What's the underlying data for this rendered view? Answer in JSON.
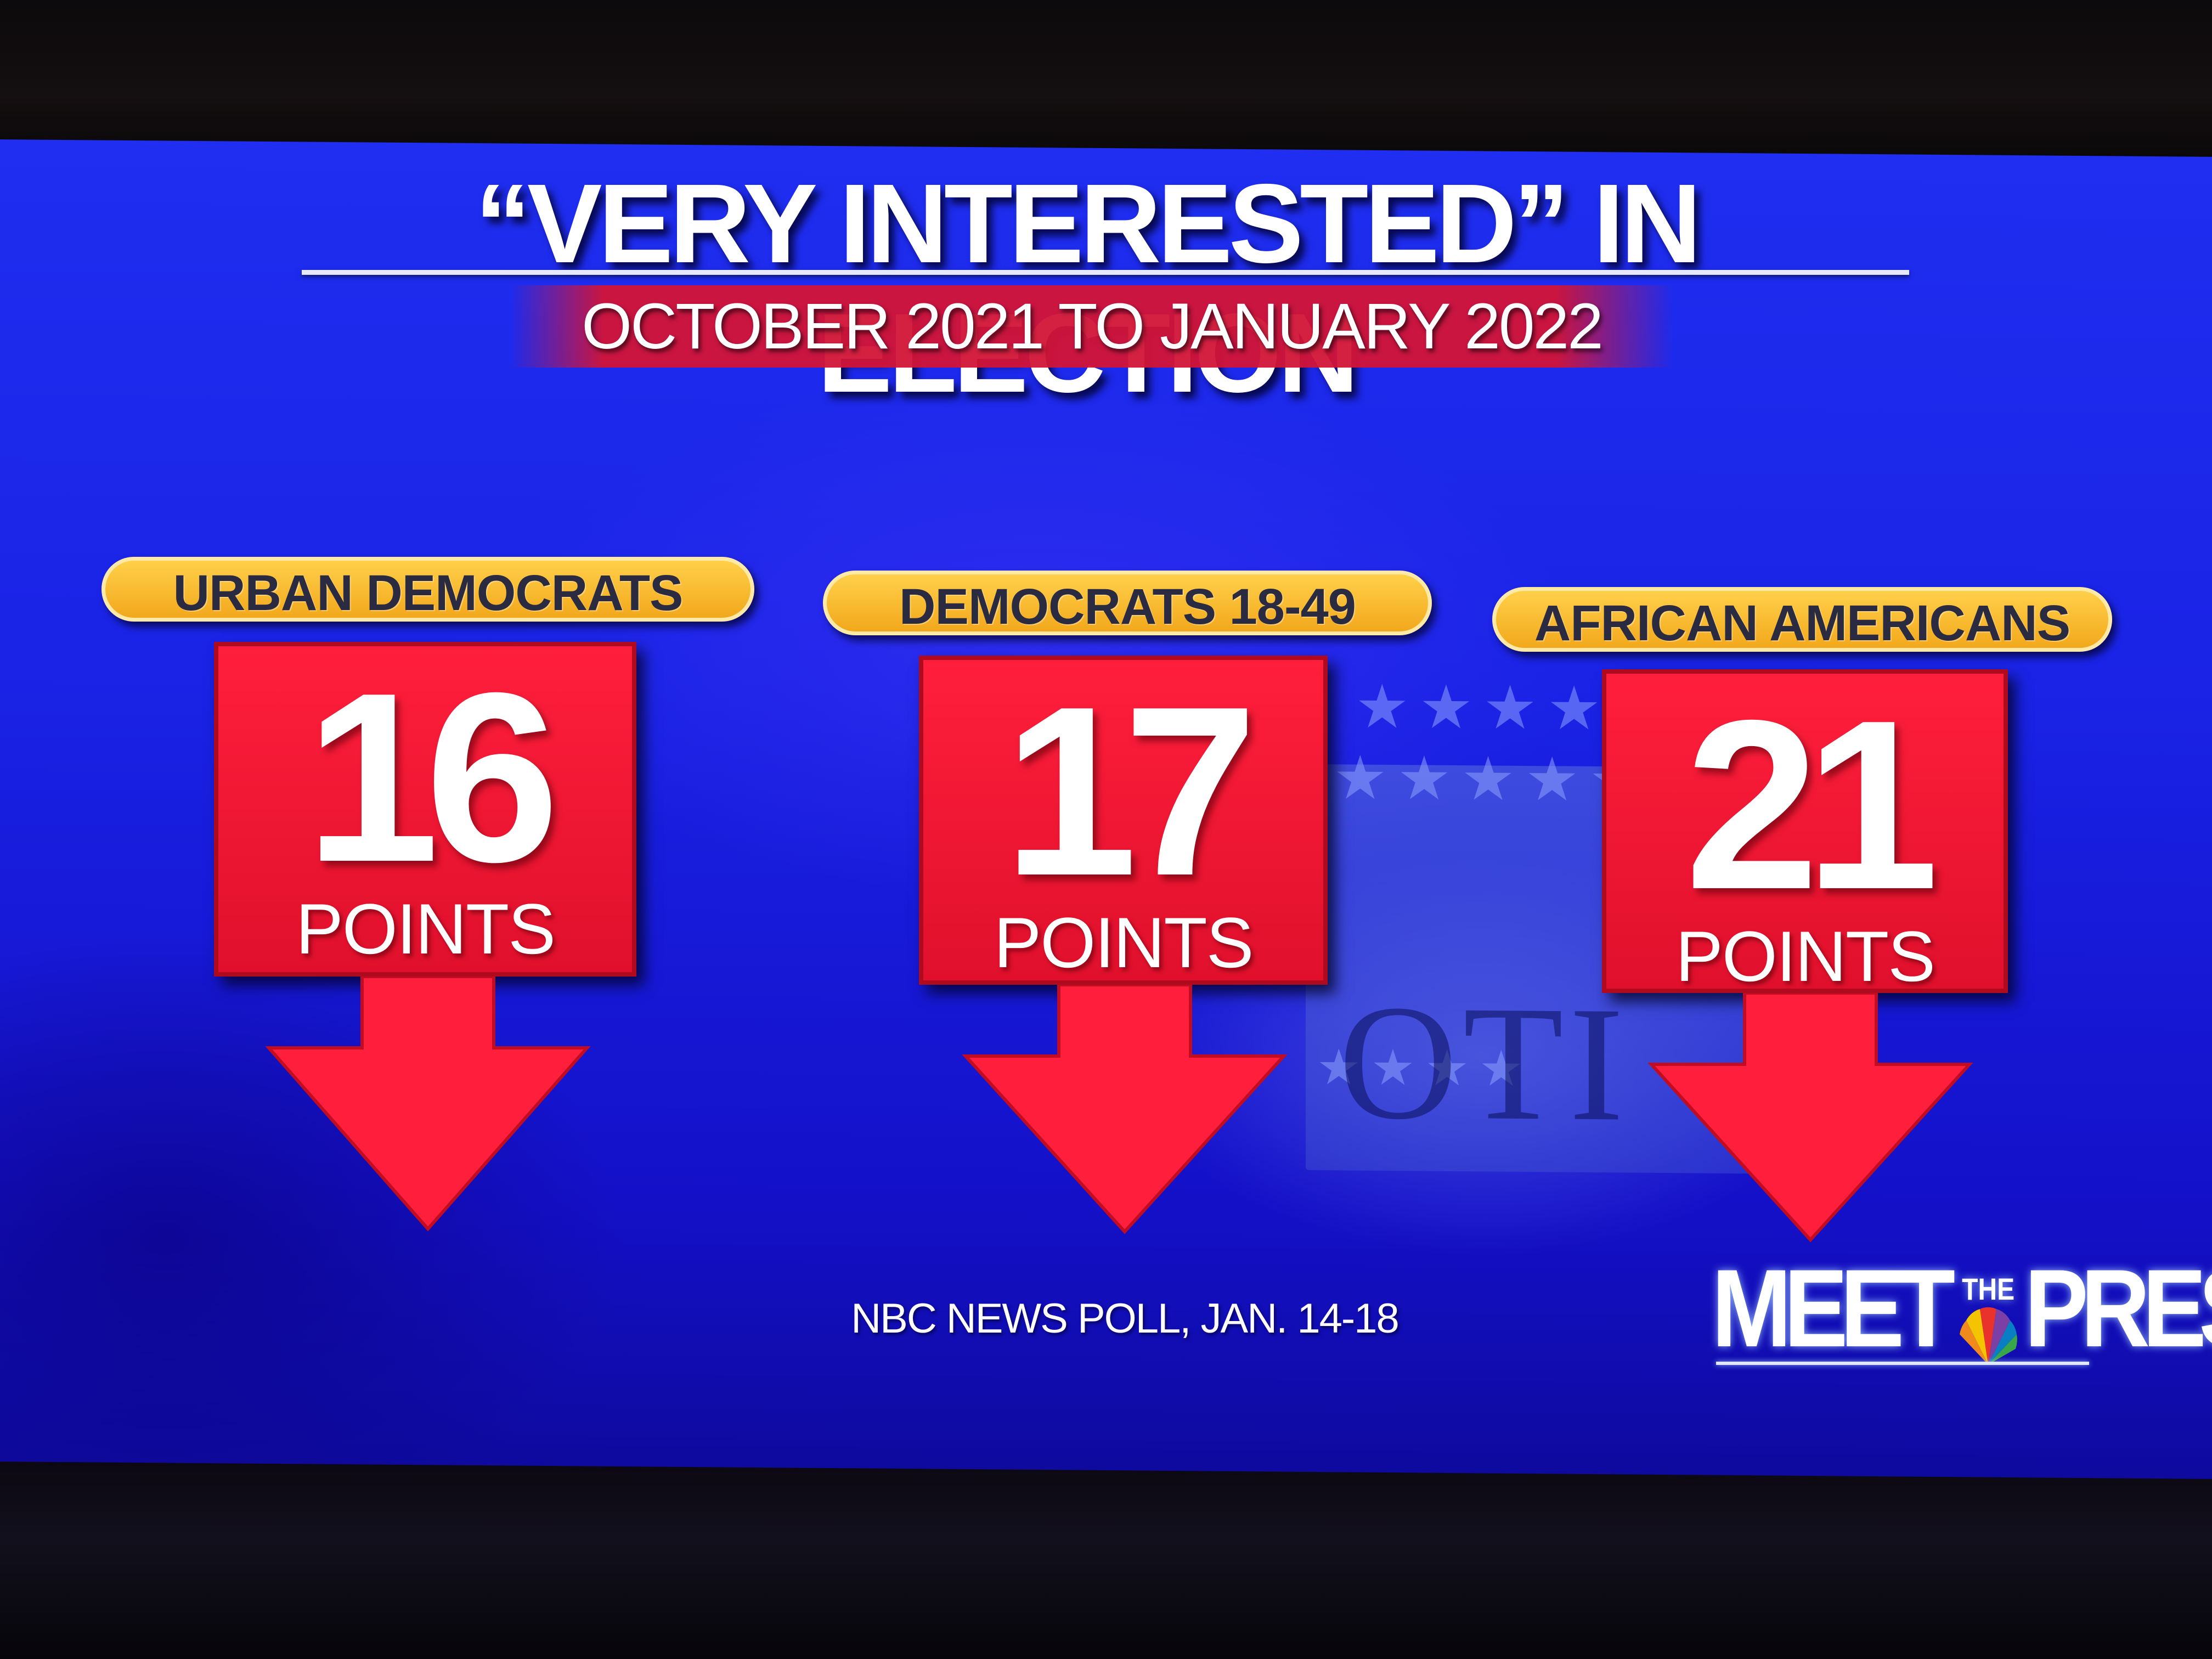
{
  "graphic": {
    "title": "“VERY INTERESTED” IN ELECTION",
    "subtitle": "OCTOBER 2021 TO JANUARY 2022",
    "groups": [
      {
        "label": "URBAN DEMOCRATS",
        "value": "16",
        "unit": "POINTS",
        "direction": "down"
      },
      {
        "label": "DEMOCRATS 18-49",
        "value": "17",
        "unit": "POINTS",
        "direction": "down"
      },
      {
        "label": "AFRICAN AMERICANS",
        "value": "21",
        "unit": "POINTS",
        "direction": "down"
      }
    ],
    "background_text": "OTI",
    "source": "NBC NEWS POLL, JAN. 14-18",
    "logo": {
      "left": "MEET",
      "middle": "THE",
      "right": "PRESS"
    }
  },
  "colors": {
    "background": "#1f2ef0",
    "card": "#ff1f3c",
    "pill": "#ffd04a",
    "arrow": "#ff1f3c",
    "text": "#ffffff"
  },
  "icons": {
    "arrow": "arrow-down-icon",
    "logo_mark": "peacock-icon"
  }
}
